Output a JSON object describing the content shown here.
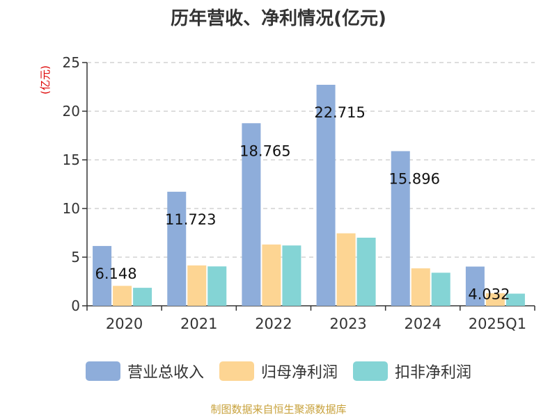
{
  "title": "历年营收、净利情况(亿元)",
  "source": "制图数据来自恒生聚源数据库",
  "colors": {
    "series": [
      "#8eadda",
      "#fdd593",
      "#84d4d5"
    ],
    "axis": "#333333",
    "grid": "#bbbbbb",
    "unit_label": "#dd0000",
    "source": "#c8a23c"
  },
  "chart_data": {
    "type": "bar",
    "title": "历年营收、净利情况(亿元)",
    "ylabel": "(亿元)",
    "xlabel": "",
    "ylim": [
      0,
      25
    ],
    "yticks": [
      0,
      5,
      10,
      15,
      20,
      25
    ],
    "grid": true,
    "legend_position": "bottom",
    "categories": [
      "2020",
      "2021",
      "2022",
      "2023",
      "2024",
      "2025Q1"
    ],
    "series": [
      {
        "name": "营业总收入",
        "values": [
          6.148,
          11.723,
          18.765,
          22.715,
          15.896,
          4.032
        ],
        "data_labels": [
          "6.148",
          "11.723",
          "18.765",
          "22.715",
          "15.896",
          "4.032"
        ]
      },
      {
        "name": "归母净利润",
        "values": [
          2.05,
          4.15,
          6.3,
          7.45,
          3.85,
          1.3
        ]
      },
      {
        "name": "扣非净利润",
        "values": [
          1.85,
          4.05,
          6.2,
          7.0,
          3.4,
          1.25
        ]
      }
    ]
  }
}
